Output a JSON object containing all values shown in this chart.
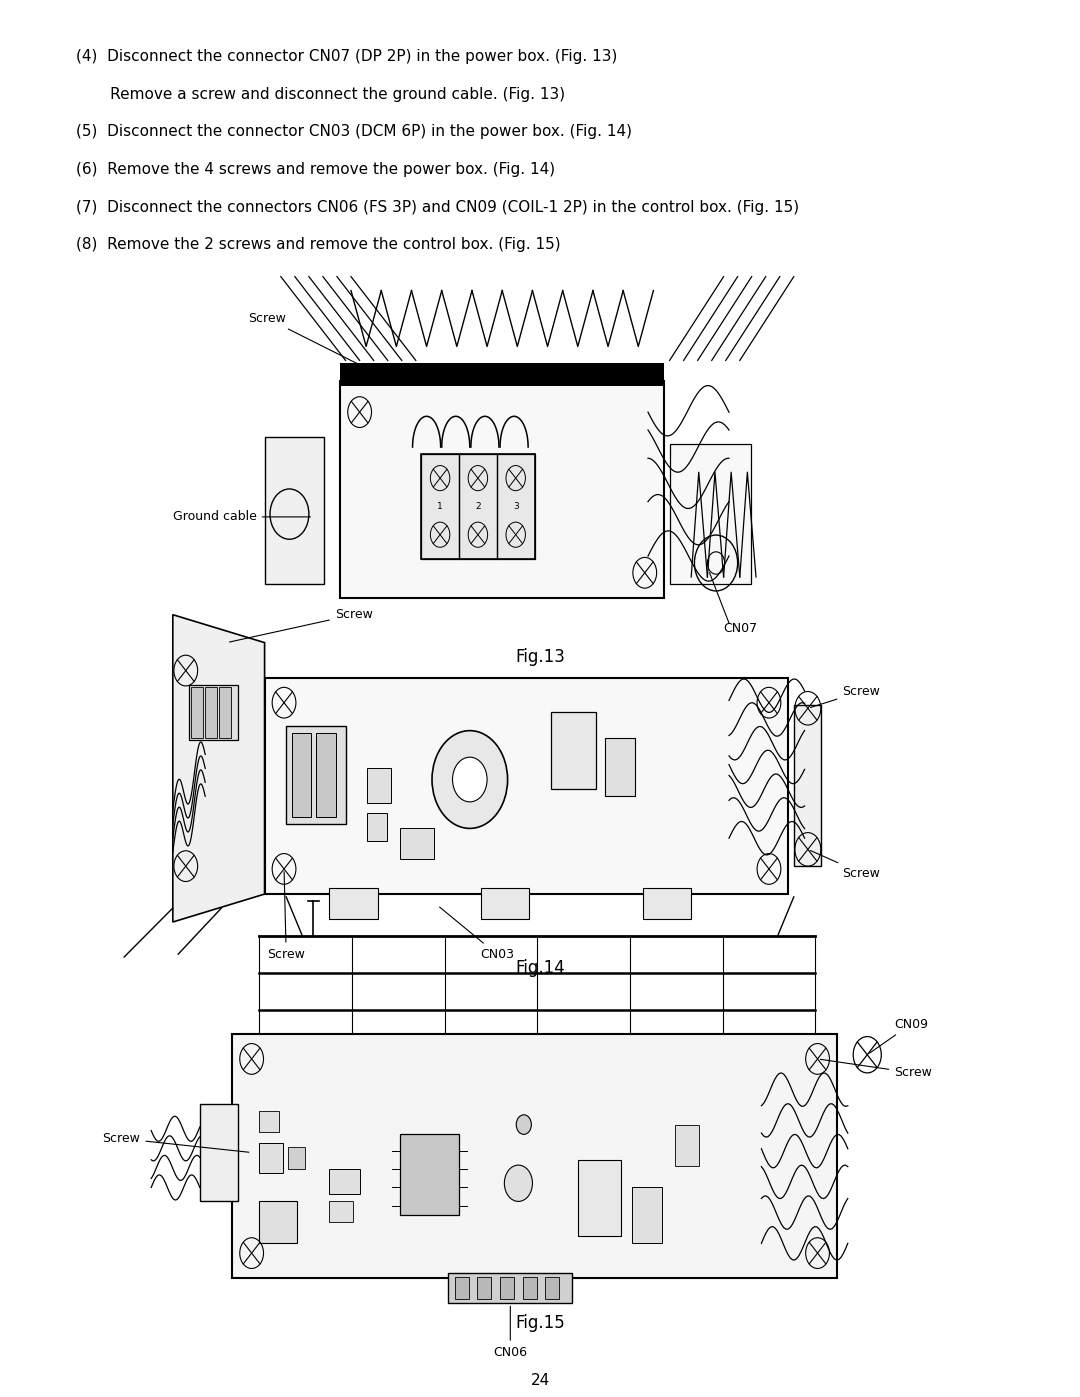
{
  "background_color": "#ffffff",
  "page_number": "24",
  "instructions": [
    "(4)  Disconnect the connector CN07 (DP 2P) in the power box. (Fig. 13)",
    "       Remove a screw and disconnect the ground cable. (Fig. 13)",
    "(5)  Disconnect the connector CN03 (DCM 6P) in the power box. (Fig. 14)",
    "(6)  Remove the 4 screws and remove the power box. (Fig. 14)",
    "(7)  Disconnect the connectors CN06 (FS 3P) and CN09 (COIL-1 2P) in the control box. (Fig. 15)",
    "(8)  Remove the 2 screws and remove the control box. (Fig. 15)"
  ],
  "fig13_caption": "Fig.13",
  "fig14_caption": "Fig.14",
  "fig15_caption": "Fig.15",
  "font_size_text": 11,
  "font_size_caption": 12,
  "font_size_label": 9,
  "font_size_page": 11
}
